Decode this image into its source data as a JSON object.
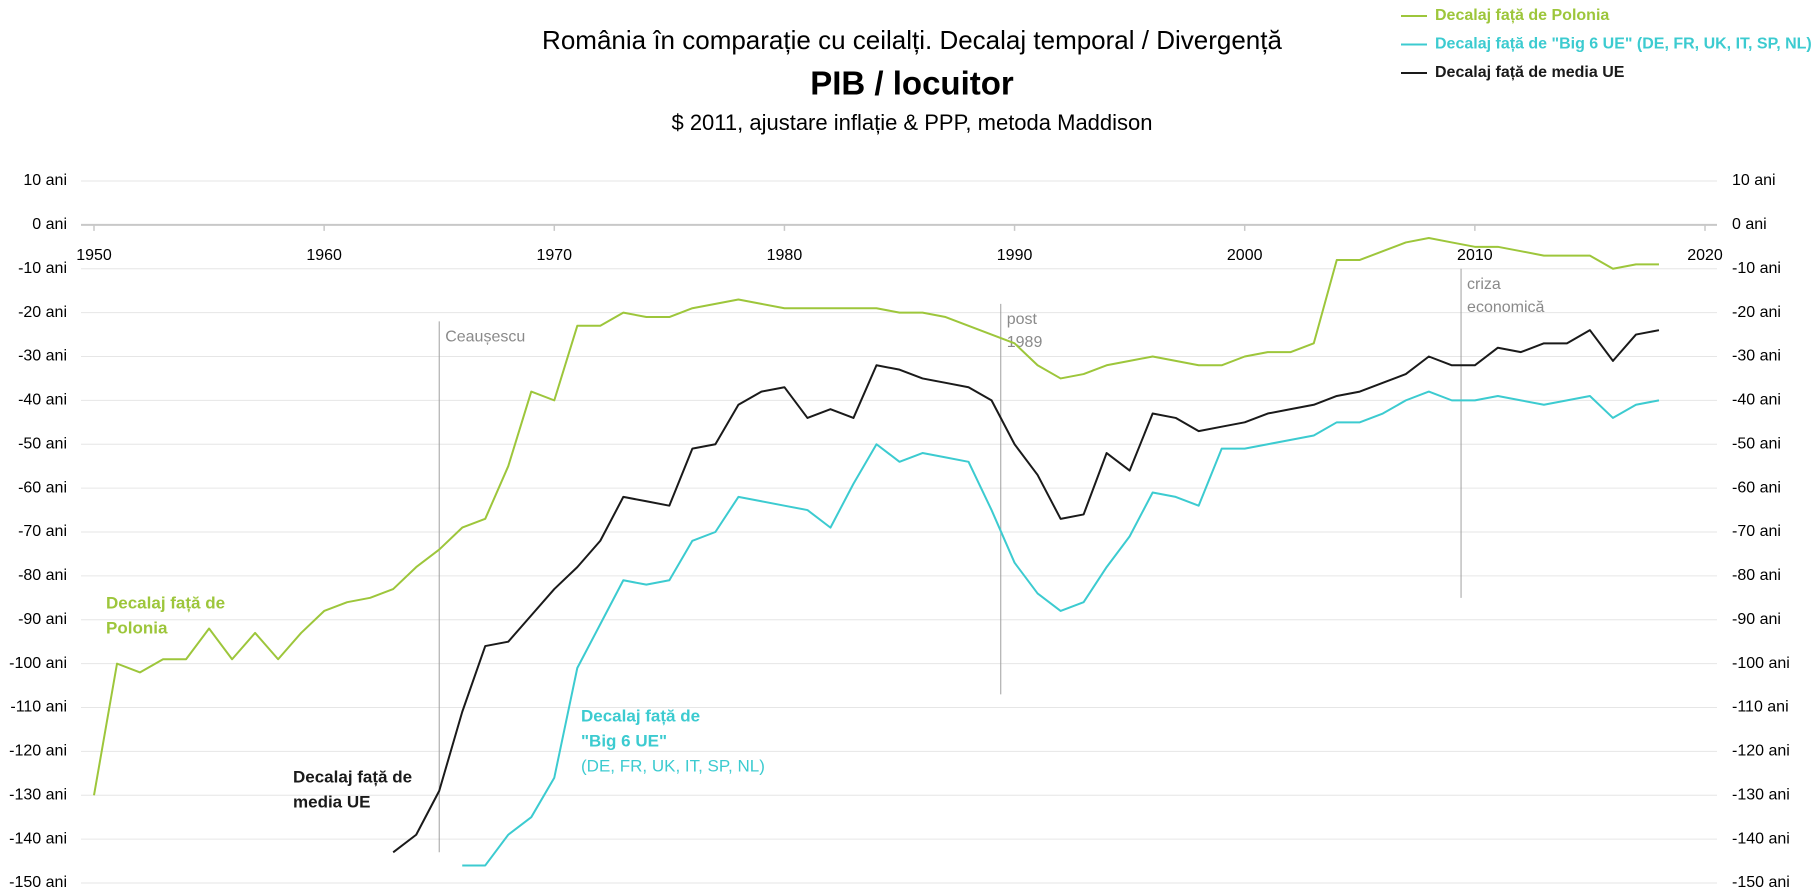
{
  "chart_data": {
    "type": "line",
    "title": "România în comparație cu ceilalți. Decalaj temporal / Divergență",
    "subtitle": "PIB / locuitor",
    "note": "$ 2011, ajustare inflație & PPP, metoda Maddison",
    "x": [
      1950,
      1951,
      1952,
      1953,
      1954,
      1955,
      1956,
      1957,
      1958,
      1959,
      1960,
      1961,
      1962,
      1963,
      1964,
      1965,
      1966,
      1967,
      1968,
      1969,
      1970,
      1971,
      1972,
      1973,
      1974,
      1975,
      1976,
      1977,
      1978,
      1979,
      1980,
      1981,
      1982,
      1983,
      1984,
      1985,
      1986,
      1987,
      1988,
      1989,
      1990,
      1991,
      1992,
      1993,
      1994,
      1995,
      1996,
      1997,
      1998,
      1999,
      2000,
      2001,
      2002,
      2003,
      2004,
      2005,
      2006,
      2007,
      2008,
      2009,
      2010,
      2011,
      2012,
      2013,
      2014,
      2015,
      2016,
      2017,
      2018
    ],
    "xlim": [
      1950,
      2020
    ],
    "xticks": [
      1950,
      1960,
      1970,
      1980,
      1990,
      2000,
      2010,
      2020
    ],
    "ylim": [
      -150,
      10
    ],
    "yticks": [
      {
        "value": 10,
        "label": "10 ani"
      },
      {
        "value": 0,
        "label": "0 ani"
      },
      {
        "value": -10,
        "label": "-10 ani"
      },
      {
        "value": -20,
        "label": "-20 ani"
      },
      {
        "value": -30,
        "label": "-30 ani"
      },
      {
        "value": -40,
        "label": "-40 ani"
      },
      {
        "value": -50,
        "label": "-50 ani"
      },
      {
        "value": -60,
        "label": "-60 ani"
      },
      {
        "value": -70,
        "label": "-70 ani"
      },
      {
        "value": -80,
        "label": "-80 ani"
      },
      {
        "value": -90,
        "label": "-90 ani"
      },
      {
        "value": -100,
        "label": "-100 ani"
      },
      {
        "value": -110,
        "label": "-110 ani"
      },
      {
        "value": -120,
        "label": "-120 ani"
      },
      {
        "value": -130,
        "label": "-130 ani"
      },
      {
        "value": -140,
        "label": "-140 ani"
      },
      {
        "value": -150,
        "label": "-150 ani"
      }
    ],
    "grid": true,
    "legend": "top-right",
    "series": [
      {
        "name": "Decalaj față de Polonia",
        "color": "#9dc63b",
        "label": [
          "Decalaj față de",
          "Polonia"
        ],
        "values": [
          -130,
          -100,
          -102,
          -99,
          -99,
          -92,
          -99,
          -93,
          -99,
          -93,
          -88,
          -86,
          -85,
          -83,
          -78,
          -74,
          -69,
          -67,
          -55,
          -38,
          -40,
          -23,
          -23,
          -20,
          -21,
          -21,
          -19,
          -18,
          -17,
          -18,
          -19,
          -19,
          -19,
          -19,
          -19,
          -20,
          -20,
          -21,
          -23,
          -25,
          -27,
          -32,
          -35,
          -34,
          -32,
          -31,
          -30,
          -31,
          -32,
          -32,
          -30,
          -29,
          -29,
          -27,
          -8,
          -8,
          -6,
          -4,
          -3,
          -4,
          -5,
          -5,
          -6,
          -7,
          -7,
          -7,
          -10,
          -9,
          -9
        ]
      },
      {
        "name": "Decalaj față de \"Big 6 UE\" (DE, FR, UK, IT, SP, NL)",
        "color": "#3ccbd0",
        "label": [
          "Decalaj față de",
          "\"Big 6 UE\"",
          "(DE, FR, UK, IT, SP, NL)"
        ],
        "values": [
          null,
          null,
          null,
          null,
          null,
          null,
          null,
          null,
          null,
          null,
          null,
          null,
          null,
          null,
          null,
          null,
          -146,
          -146,
          -139,
          -135,
          -126,
          -101,
          -91,
          -81,
          -82,
          -81,
          -72,
          -70,
          -62,
          -63,
          -64,
          -65,
          -69,
          -59,
          -50,
          -54,
          -52,
          -53,
          -54,
          -65,
          -77,
          -84,
          -88,
          -86,
          -78,
          -71,
          -61,
          -62,
          -64,
          -51,
          -51,
          -50,
          -49,
          -48,
          -45,
          -45,
          -43,
          -40,
          -38,
          -40,
          -40,
          -39,
          -40,
          -41,
          -40,
          -39,
          -44,
          -41,
          -40
        ]
      },
      {
        "name": "Decalaj față de media UE",
        "color": "#1a1a1a",
        "label": [
          "Decalaj față de",
          "media UE"
        ],
        "values": [
          null,
          null,
          null,
          null,
          null,
          null,
          null,
          null,
          null,
          null,
          null,
          null,
          null,
          -143,
          -139,
          -129,
          -111,
          -96,
          -95,
          -89,
          -83,
          -78,
          -72,
          -62,
          -63,
          -64,
          -51,
          -50,
          -41,
          -38,
          -37,
          -44,
          -42,
          -44,
          -32,
          -33,
          -35,
          -36,
          -37,
          -40,
          -50,
          -57,
          -67,
          -66,
          -52,
          -56,
          -43,
          -44,
          -47,
          -46,
          -45,
          -43,
          -42,
          -41,
          -39,
          -38,
          -36,
          -34,
          -30,
          -32,
          -32,
          -28,
          -29,
          -27,
          -27,
          -24,
          -31,
          -25,
          -24
        ]
      }
    ],
    "annotations": [
      {
        "lines": [
          "Ceaușescu"
        ],
        "x": 1965,
        "y_top": -22,
        "y_bottom": -143
      },
      {
        "lines": [
          "post",
          "1989"
        ],
        "x": 1989.4,
        "y_top": -18,
        "y_bottom": -107
      },
      {
        "lines": [
          "criza",
          "economică"
        ],
        "x": 2009.4,
        "y_top": -10,
        "y_bottom": -85
      }
    ]
  }
}
